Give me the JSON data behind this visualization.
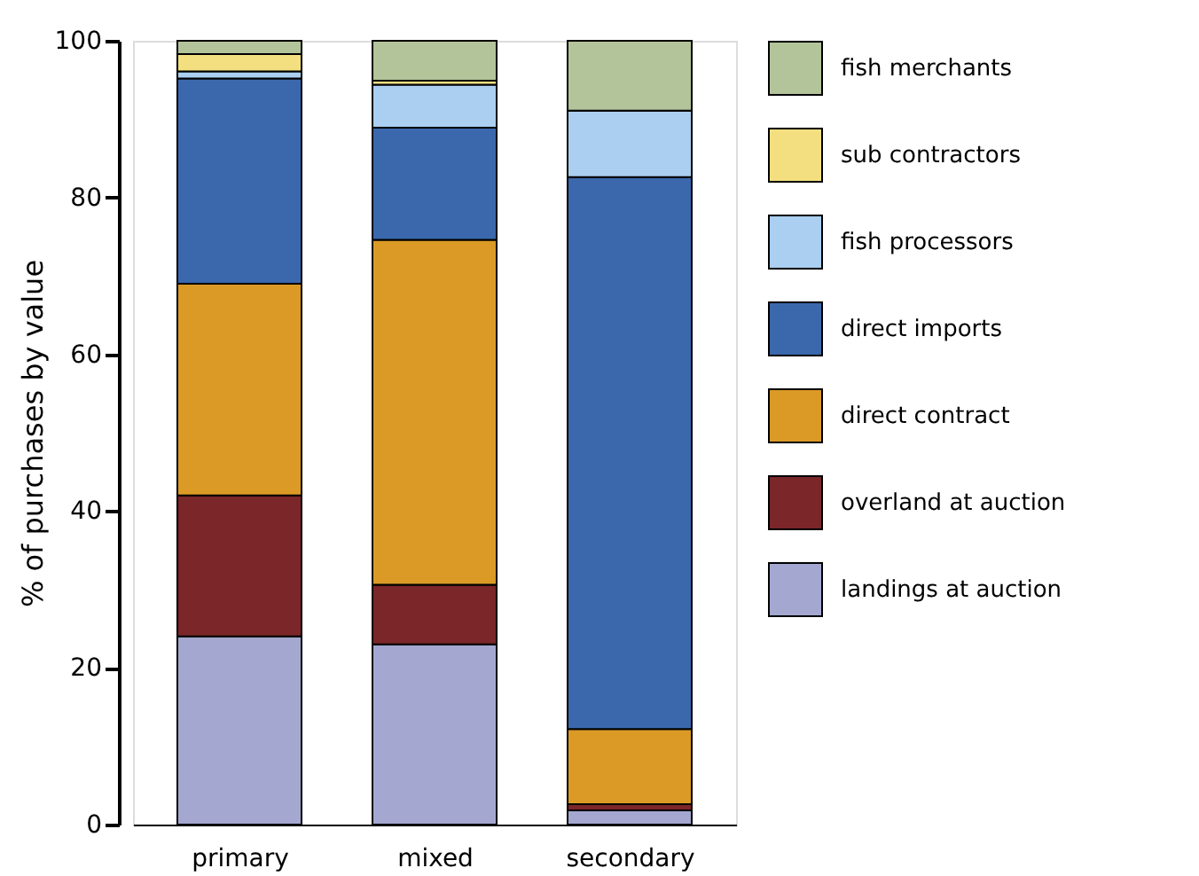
{
  "chart_data": {
    "type": "bar",
    "stacked": true,
    "ylabel": "% of purchases by value",
    "categories": [
      "primary",
      "mixed",
      "secondary"
    ],
    "series": [
      {
        "name": "landings at auction",
        "color": "#a4a8d1",
        "values": [
          24,
          23,
          1.8
        ]
      },
      {
        "name": "overland at auction",
        "color": "#7b2629",
        "values": [
          18,
          7.6,
          0.8
        ]
      },
      {
        "name": "direct contract",
        "color": "#db9a26",
        "values": [
          27,
          44,
          9.6
        ]
      },
      {
        "name": "direct imports",
        "color": "#3b68ad",
        "values": [
          26.2,
          14.3,
          70.4
        ]
      },
      {
        "name": "fish processors",
        "color": "#aacff0",
        "values": [
          0.9,
          5.5,
          8.5
        ]
      },
      {
        "name": "sub contractors",
        "color": "#f3df80",
        "values": [
          2.2,
          0.5,
          0
        ]
      },
      {
        "name": "fish merchants",
        "color": "#b3c49a",
        "values": [
          1.7,
          5.1,
          8.9
        ]
      }
    ],
    "ylim": [
      0,
      100
    ],
    "yticks": [
      0,
      20,
      40,
      60,
      80,
      100
    ],
    "grid": false,
    "legend": "right"
  }
}
